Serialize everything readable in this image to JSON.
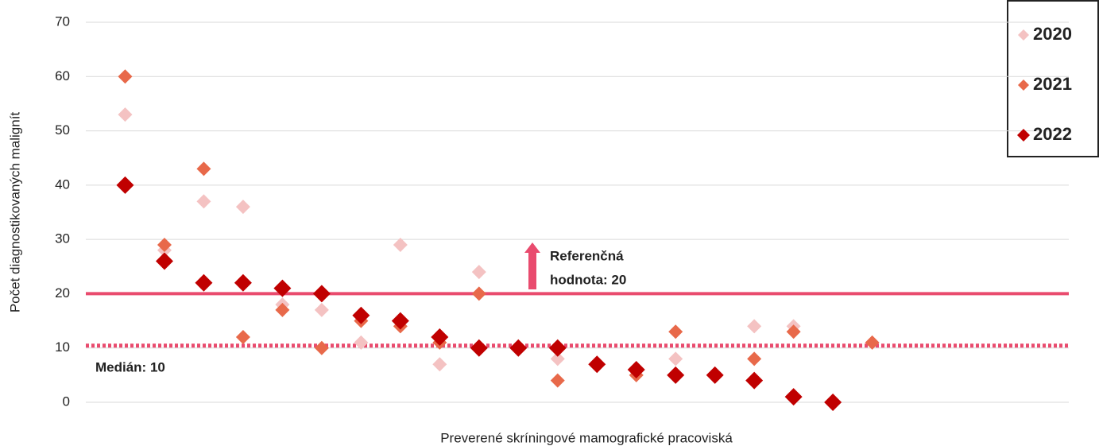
{
  "chart_data": {
    "type": "scatter",
    "x_label": "Preverené skríningové mamografické pracoviská",
    "y_label": "Počet diagnostikovaných malignít",
    "x": [
      1,
      2,
      3,
      4,
      5,
      6,
      7,
      8,
      9,
      10,
      11,
      12,
      13,
      14,
      15,
      16,
      17,
      18,
      19,
      20
    ],
    "xlim": [
      0,
      25
    ],
    "ylim": [
      0,
      70
    ],
    "yticks": [
      0,
      10,
      20,
      30,
      40,
      50,
      60,
      70
    ],
    "grid": true,
    "series": [
      {
        "name": "2020",
        "color": "#f4c2c2",
        "values": [
          53,
          28,
          37,
          36,
          18,
          17,
          11,
          29,
          7,
          24,
          10,
          8,
          null,
          5,
          8,
          null,
          14,
          14,
          null,
          null
        ]
      },
      {
        "name": "2021",
        "color": "#e8694a",
        "values": [
          60,
          29,
          43,
          12,
          17,
          10,
          15,
          14,
          11,
          20,
          10,
          4,
          null,
          5,
          13,
          null,
          8,
          13,
          null,
          11
        ]
      },
      {
        "name": "2022",
        "color": "#c00000",
        "values": [
          40,
          26,
          22,
          22,
          21,
          20,
          16,
          15,
          12,
          10,
          10,
          10,
          7,
          6,
          5,
          5,
          4,
          1,
          0,
          null
        ]
      }
    ],
    "reference": {
      "value": 20,
      "label": [
        "Referenčná",
        "hodnota: 20"
      ]
    },
    "median": {
      "value": 10,
      "label": "Medián: 10"
    },
    "legend": "top-right"
  }
}
